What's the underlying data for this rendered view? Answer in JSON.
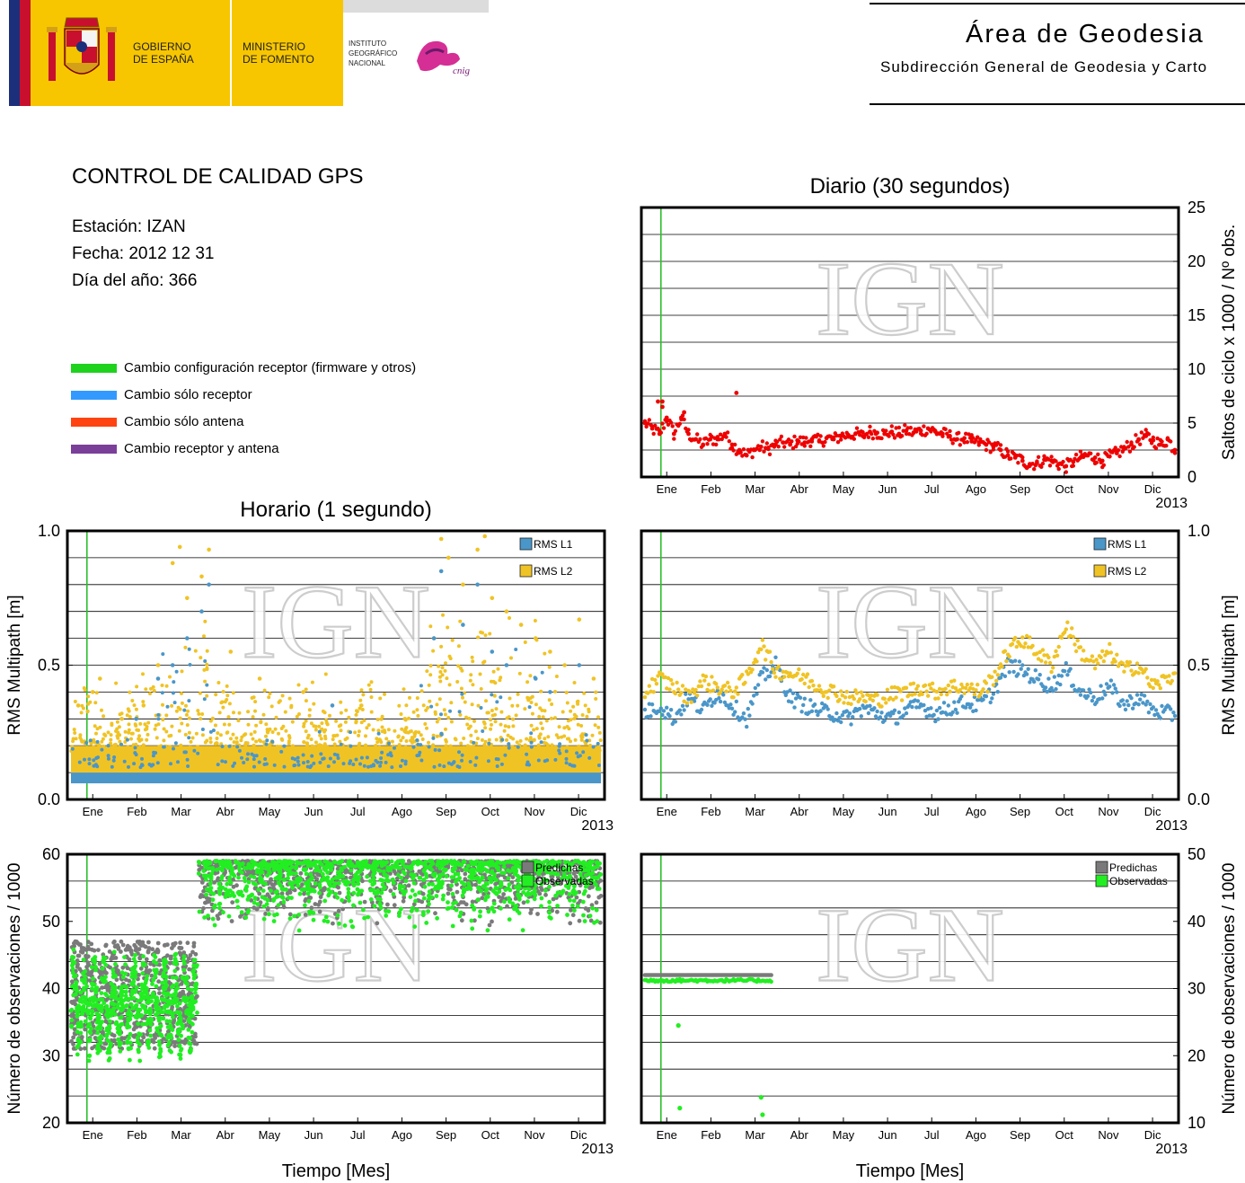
{
  "header": {
    "gov_line1": "GOBIERNO",
    "gov_line2": "DE ESPAÑA",
    "min_line1": "MINISTERIO",
    "min_line2": "DE FOMENTO",
    "ign_line1": "INSTITUTO",
    "ign_line2": "GEOGRÁFICO",
    "ign_line3": "NACIONAL",
    "cnig": "cnig",
    "area_title": "Área de Geodesia",
    "area_subtitle": "Subdirección General de Geodesia y Carto"
  },
  "info": {
    "title": "CONTROL DE CALIDAD GPS",
    "station": "Estación: IZAN",
    "date": "Fecha: 2012 12 31",
    "doy": "Día del año: 366"
  },
  "legend": [
    {
      "label": "Cambio configuración receptor (firmware y otros)",
      "color": "#1ed21e"
    },
    {
      "label": "Cambio sólo receptor",
      "color": "#3399ff"
    },
    {
      "label": "Cambio sólo antena",
      "color": "#ff4411"
    },
    {
      "label": "Cambio receptor y antena",
      "color": "#7a3f99"
    }
  ],
  "watermark": "IGN",
  "colors": {
    "event_line": "#2dbf2d",
    "cycle_slips": "#ee0000",
    "rms_l1": "#4a96c9",
    "rms_l2": "#f0c324",
    "predicted": "#7a7a7a",
    "observed": "#22ee22"
  },
  "chart_data": [
    {
      "id": "cycle-slips-daily",
      "type": "scatter",
      "title": "Diario (30 segundos)",
      "xlabel": "",
      "ylabel": "Saltos de ciclo x 1000 / Nº obs.",
      "x_ticks": [
        "Ene",
        "Feb",
        "Mar",
        "Abr",
        "May",
        "Jun",
        "Jul",
        "Ago",
        "Sep",
        "Oct",
        "Nov",
        "Dic"
      ],
      "x_year": "2013",
      "ylim": [
        0,
        25
      ],
      "y_ticks": [
        0,
        5,
        10,
        15,
        20,
        25
      ],
      "y_axis_side": "right",
      "grid": true,
      "event_line_day": 11,
      "series": [
        {
          "values_x": [
            0,
            5,
            10,
            15,
            20,
            25,
            30,
            35,
            40,
            45,
            50,
            55,
            60,
            65,
            70,
            75,
            80,
            85,
            90,
            95,
            100,
            105,
            110,
            115,
            120,
            125,
            130,
            135,
            140,
            145,
            150,
            155,
            160,
            165,
            170,
            175,
            180,
            185,
            190,
            195,
            200,
            205,
            210,
            215,
            220,
            225,
            230,
            235,
            240,
            245,
            250,
            255,
            260,
            265,
            270,
            275,
            280,
            285,
            290,
            295,
            300,
            305,
            310,
            315,
            320,
            325,
            330,
            335,
            340,
            345,
            350,
            355,
            360,
            365,
            9,
            12,
            27,
            63,
            12
          ],
          "values": [
            5,
            4.5,
            4,
            5.5,
            4,
            5.5,
            4,
            3.5,
            3,
            3.5,
            3.5,
            4,
            3,
            2.5,
            2,
            2.5,
            2.8,
            2.6,
            3,
            3.2,
            3,
            3.4,
            3.2,
            3.5,
            3.3,
            3.6,
            3.5,
            3.8,
            3.9,
            4,
            3.8,
            4.2,
            4.1,
            4,
            4.2,
            4,
            4.3,
            4.1,
            4.3,
            4.5,
            4.2,
            4,
            3.8,
            3.5,
            3.6,
            3.3,
            3.2,
            3,
            2.8,
            2.5,
            2,
            1.8,
            1.5,
            1.2,
            1.3,
            1.6,
            1.5,
            1.2,
            1,
            1.4,
            1.8,
            2,
            1.8,
            1.5,
            1.9,
            2.2,
            2.6,
            3,
            3.5,
            3.8,
            3.4,
            3,
            3.5,
            2.5,
            7,
            7,
            6,
            7.8,
            6.5
          ]
        }
      ]
    },
    {
      "id": "rms-hourly",
      "type": "scatter",
      "title": "Horario (1 segundo)",
      "xlabel": "",
      "ylabel": "RMS Multipath [m]",
      "x_ticks": [
        "Ene",
        "Feb",
        "Mar",
        "Abr",
        "May",
        "Jun",
        "Jul",
        "Ago",
        "Sep",
        "Oct",
        "Nov",
        "Dic"
      ],
      "x_year": "2013",
      "ylim": [
        0.0,
        1.0
      ],
      "y_ticks": [
        "0.0",
        "0.5",
        "1.0"
      ],
      "y_axis_side": "left",
      "grid": true,
      "event_line_day": 11,
      "legend": [
        "RMS L1",
        "RMS L2"
      ],
      "series": [
        {
          "name": "RMS L1",
          "band": [
            0.06,
            0.12
          ],
          "outliers_x": [
            45,
            60,
            70,
            80,
            90,
            95,
            180,
            250,
            255,
            270,
            280,
            290,
            300,
            320,
            330,
            350
          ],
          "outliers": [
            0.3,
            0.45,
            0.5,
            0.6,
            0.7,
            0.8,
            0.35,
            0.6,
            0.85,
            0.65,
            0.8,
            0.55,
            0.5,
            0.45,
            0.4,
            0.5
          ]
        },
        {
          "name": "RMS L2",
          "band": [
            0.1,
            0.2
          ],
          "outliers_x": [
            5,
            15,
            20,
            35,
            50,
            60,
            70,
            75,
            80,
            90,
            95,
            110,
            130,
            160,
            200,
            230,
            250,
            255,
            260,
            270,
            280,
            285,
            290,
            300,
            310,
            320,
            330,
            340,
            350,
            360
          ],
          "outliers": [
            0.35,
            0.4,
            0.45,
            0.3,
            0.35,
            0.5,
            0.88,
            0.94,
            0.75,
            0.83,
            0.93,
            0.55,
            0.45,
            0.4,
            0.35,
            0.3,
            0.6,
            0.97,
            0.9,
            0.8,
            0.93,
            0.98,
            0.75,
            0.7,
            0.65,
            0.6,
            0.55,
            0.5,
            0.67,
            0.45
          ]
        }
      ]
    },
    {
      "id": "rms-daily",
      "type": "scatter",
      "title": "",
      "xlabel": "",
      "ylabel": "RMS Multipath [m]",
      "x_ticks": [
        "Ene",
        "Feb",
        "Mar",
        "Abr",
        "May",
        "Jun",
        "Jul",
        "Ago",
        "Sep",
        "Oct",
        "Nov",
        "Dic"
      ],
      "x_year": "2013",
      "ylim": [
        0.0,
        1.0
      ],
      "y_ticks": [
        "0.0",
        "0.5",
        "1.0"
      ],
      "y_axis_side": "right",
      "grid": true,
      "event_line_day": 11,
      "legend": [
        "RMS L1",
        "RMS L2"
      ],
      "series": [
        {
          "name": "RMS L1",
          "x": [
            0,
            10,
            20,
            30,
            40,
            50,
            60,
            70,
            80,
            90,
            100,
            110,
            120,
            130,
            140,
            150,
            160,
            170,
            180,
            190,
            200,
            210,
            220,
            230,
            240,
            250,
            260,
            270,
            280,
            290,
            300,
            310,
            320,
            330,
            340,
            350,
            360
          ],
          "values": [
            0.32,
            0.35,
            0.3,
            0.38,
            0.33,
            0.4,
            0.35,
            0.3,
            0.45,
            0.5,
            0.38,
            0.35,
            0.33,
            0.32,
            0.3,
            0.34,
            0.32,
            0.3,
            0.33,
            0.35,
            0.32,
            0.34,
            0.36,
            0.35,
            0.4,
            0.5,
            0.48,
            0.45,
            0.42,
            0.48,
            0.4,
            0.38,
            0.42,
            0.35,
            0.38,
            0.33,
            0.32
          ]
        },
        {
          "name": "RMS L2",
          "x": [
            0,
            10,
            20,
            30,
            40,
            50,
            60,
            70,
            80,
            90,
            100,
            110,
            120,
            130,
            140,
            150,
            160,
            170,
            180,
            190,
            200,
            210,
            220,
            230,
            240,
            250,
            260,
            270,
            280,
            290,
            300,
            310,
            320,
            330,
            340,
            350,
            360
          ],
          "values": [
            0.4,
            0.45,
            0.42,
            0.38,
            0.44,
            0.42,
            0.4,
            0.45,
            0.58,
            0.48,
            0.47,
            0.45,
            0.42,
            0.4,
            0.38,
            0.38,
            0.37,
            0.39,
            0.4,
            0.42,
            0.4,
            0.42,
            0.42,
            0.4,
            0.45,
            0.55,
            0.6,
            0.55,
            0.5,
            0.65,
            0.55,
            0.5,
            0.55,
            0.48,
            0.5,
            0.42,
            0.45
          ]
        }
      ]
    },
    {
      "id": "obs-hourly",
      "type": "scatter",
      "title": "",
      "xlabel": "Tiempo [Mes]",
      "ylabel": "Número de observaciones / 1000",
      "x_ticks": [
        "Ene",
        "Feb",
        "Mar",
        "Abr",
        "May",
        "Jun",
        "Jul",
        "Ago",
        "Sep",
        "Oct",
        "Nov",
        "Dic"
      ],
      "x_year": "2013",
      "ylim": [
        20,
        60
      ],
      "y_ticks": [
        20,
        30,
        40,
        50,
        60
      ],
      "y_axis_side": "left",
      "grid": true,
      "event_line_day": 11,
      "legend": [
        "Predichas",
        "Observadas"
      ],
      "series": [
        {
          "name": "Predichas",
          "segments": [
            {
              "x": [
                0,
                87
              ],
              "band": [
                31,
                47
              ]
            },
            {
              "x": [
                88,
                365
              ],
              "band": [
                53,
                59
              ]
            }
          ]
        },
        {
          "name": "Observadas",
          "segments": [
            {
              "x": [
                0,
                87
              ],
              "band": [
                30,
                47
              ]
            },
            {
              "x": [
                88,
                365
              ],
              "band": [
                52,
                59
              ]
            }
          ]
        }
      ]
    },
    {
      "id": "obs-daily",
      "type": "scatter",
      "title": "",
      "xlabel": "Tiempo [Mes]",
      "ylabel": "Número de observaciones / 1000",
      "x_ticks": [
        "Ene",
        "Feb",
        "Mar",
        "Abr",
        "May",
        "Jun",
        "Jul",
        "Ago",
        "Sep",
        "Oct",
        "Nov",
        "Dic"
      ],
      "x_year": "2013",
      "ylim": [
        10,
        50
      ],
      "y_ticks": [
        10,
        20,
        30,
        40,
        50
      ],
      "y_axis_side": "right",
      "grid": true,
      "event_line_day": 11,
      "legend": [
        "Predichas",
        "Observadas"
      ],
      "series": [
        {
          "name": "Predichas",
          "x_range": [
            0,
            87
          ],
          "value": 32
        },
        {
          "name": "Observadas",
          "x_range": [
            0,
            87
          ],
          "value": 31.2,
          "outliers_x": [
            23,
            24,
            80,
            81
          ],
          "outliers": [
            24.5,
            12.2,
            13.8,
            11.2
          ]
        }
      ]
    }
  ]
}
